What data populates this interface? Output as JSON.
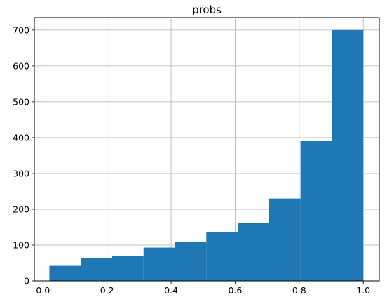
{
  "chart_data": {
    "type": "bar",
    "title": "probs",
    "xlabel": "",
    "ylabel": "",
    "xlim": [
      -0.027,
      1.05
    ],
    "ylim": [
      0,
      735
    ],
    "bins": [
      {
        "x0": 0.02,
        "x1": 0.118,
        "value": 42
      },
      {
        "x0": 0.118,
        "x1": 0.216,
        "value": 64
      },
      {
        "x0": 0.216,
        "x1": 0.314,
        "value": 70
      },
      {
        "x0": 0.314,
        "x1": 0.412,
        "value": 93
      },
      {
        "x0": 0.412,
        "x1": 0.51,
        "value": 108
      },
      {
        "x0": 0.51,
        "x1": 0.608,
        "value": 136
      },
      {
        "x0": 0.608,
        "x1": 0.706,
        "value": 162
      },
      {
        "x0": 0.706,
        "x1": 0.804,
        "value": 230
      },
      {
        "x0": 0.804,
        "x1": 0.902,
        "value": 390
      },
      {
        "x0": 0.902,
        "x1": 1.0,
        "value": 700
      }
    ],
    "x_ticks": [
      {
        "value": 0.0,
        "label": "0.0"
      },
      {
        "value": 0.2,
        "label": "0.2"
      },
      {
        "value": 0.4,
        "label": "0.4"
      },
      {
        "value": 0.6,
        "label": "0.6"
      },
      {
        "value": 0.8,
        "label": "0.8"
      },
      {
        "value": 1.0,
        "label": "1.0"
      }
    ],
    "y_ticks": [
      {
        "value": 0,
        "label": "0"
      },
      {
        "value": 100,
        "label": "100"
      },
      {
        "value": 200,
        "label": "200"
      },
      {
        "value": 300,
        "label": "300"
      },
      {
        "value": 400,
        "label": "400"
      },
      {
        "value": 500,
        "label": "500"
      },
      {
        "value": 600,
        "label": "600"
      },
      {
        "value": 700,
        "label": "700"
      }
    ],
    "grid": true,
    "colors": {
      "bar": "#1f77b4",
      "grid": "#b0b0b0",
      "axis": "#000000"
    }
  }
}
